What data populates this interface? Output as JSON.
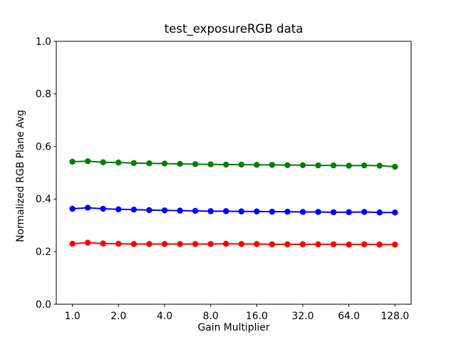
{
  "figure": {
    "background_color": "#ffffff",
    "text_color": "#000000"
  },
  "chart_data": {
    "type": "line",
    "title": "test_exposureRGB data",
    "xlabel": "Gain Multiplier",
    "ylabel": "Normalized RGB Plane Avg",
    "x_scale": "log2",
    "grid": false,
    "legend": false,
    "marker": "o",
    "ylim": [
      0.0,
      1.0
    ],
    "xlim_log2": [
      -0.35,
      7.35
    ],
    "x_ticks": {
      "values": [
        1,
        2,
        4,
        8,
        16,
        32,
        64,
        128
      ],
      "labels": [
        "1.0",
        "2.0",
        "4.0",
        "8.0",
        "16.0",
        "32.0",
        "64.0",
        "128.0"
      ]
    },
    "y_ticks": {
      "values": [
        0.0,
        0.2,
        0.4,
        0.6,
        0.8,
        1.0
      ],
      "labels": [
        "0.0",
        "0.2",
        "0.4",
        "0.6",
        "0.8",
        "1.0"
      ]
    },
    "x": [
      1.0,
      1.26,
      1.587,
      2.0,
      2.52,
      3.175,
      4.0,
      5.04,
      6.35,
      8.0,
      10.079,
      12.699,
      16.0,
      20.159,
      25.398,
      32.0,
      40.317,
      50.797,
      64.0,
      80.635,
      101.594,
      128.0
    ],
    "series": [
      {
        "name": "red-plane",
        "color": "#ff0000",
        "values": [
          0.23,
          0.234,
          0.231,
          0.23,
          0.229,
          0.229,
          0.229,
          0.229,
          0.229,
          0.229,
          0.23,
          0.229,
          0.229,
          0.228,
          0.228,
          0.228,
          0.228,
          0.228,
          0.227,
          0.228,
          0.227,
          0.227
        ]
      },
      {
        "name": "green-plane",
        "color": "#008000",
        "values": [
          0.542,
          0.544,
          0.54,
          0.539,
          0.537,
          0.536,
          0.535,
          0.534,
          0.533,
          0.532,
          0.531,
          0.531,
          0.53,
          0.53,
          0.529,
          0.529,
          0.528,
          0.528,
          0.527,
          0.528,
          0.527,
          0.523
        ]
      },
      {
        "name": "blue-plane",
        "color": "#0000ff",
        "values": [
          0.363,
          0.367,
          0.363,
          0.361,
          0.36,
          0.358,
          0.357,
          0.356,
          0.355,
          0.354,
          0.354,
          0.353,
          0.353,
          0.352,
          0.352,
          0.351,
          0.351,
          0.35,
          0.35,
          0.351,
          0.349,
          0.349
        ]
      }
    ]
  }
}
